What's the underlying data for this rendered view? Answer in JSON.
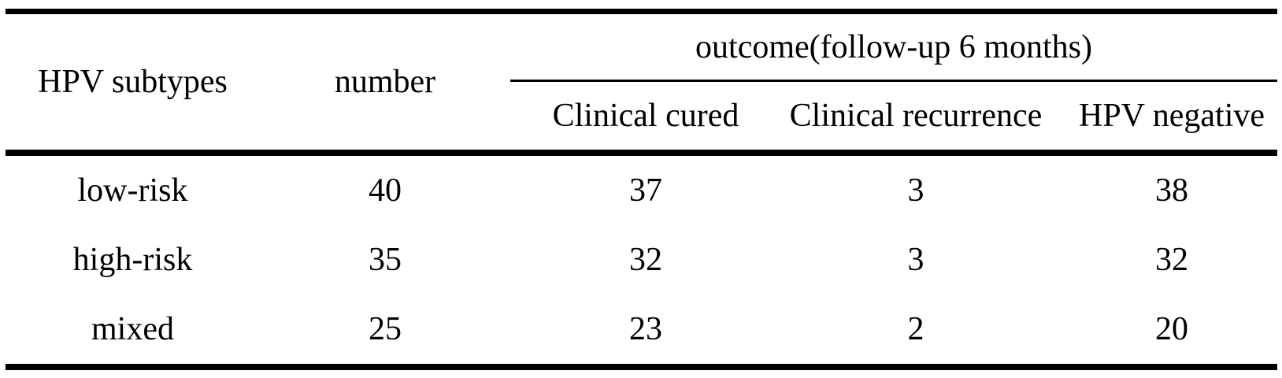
{
  "table": {
    "headers": {
      "hpv_subtypes": "HPV subtypes",
      "number": "number",
      "outcome_group": "outcome(follow-up 6 months)",
      "sub": [
        "Clinical cured",
        "Clinical recurrence",
        "HPV negative"
      ]
    },
    "rows": [
      {
        "subtype": "low-risk",
        "number": "40",
        "cured": "37",
        "recurrence": "3",
        "negative": "38"
      },
      {
        "subtype": "high-risk",
        "number": "35",
        "cured": "32",
        "recurrence": "3",
        "negative": "32"
      },
      {
        "subtype": "mixed",
        "number": "25",
        "cured": "23",
        "recurrence": "2",
        "negative": "20"
      }
    ],
    "colors": {
      "rule": "#000000",
      "text": "#000000",
      "background": "#ffffff"
    }
  }
}
